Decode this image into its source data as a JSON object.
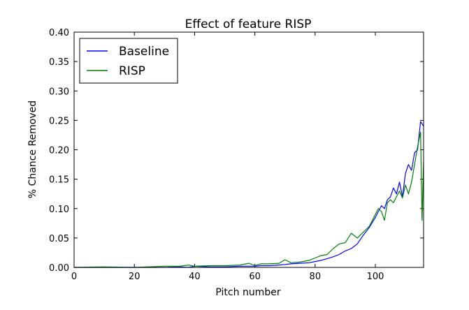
{
  "chart_data": {
    "type": "line",
    "title": "Effect of feature RISP",
    "xlabel": "Pitch number",
    "ylabel": "% Chance Removed",
    "xlim": [
      0,
      116
    ],
    "ylim": [
      0,
      0.4
    ],
    "xticks": [
      0,
      20,
      40,
      60,
      80,
      100
    ],
    "xtick_labels": [
      "0",
      "20",
      "40",
      "60",
      "80",
      "100"
    ],
    "yticks": [
      0,
      0.05,
      0.1,
      0.15,
      0.2,
      0.25,
      0.3,
      0.35,
      0.4
    ],
    "ytick_labels": [
      "0.00",
      "0.05",
      "0.10",
      "0.15",
      "0.20",
      "0.25",
      "0.30",
      "0.35",
      "0.40"
    ],
    "legend_position": "top-left",
    "grid": false,
    "series": [
      {
        "name": "Baseline",
        "color": "#0000ff",
        "x": [
          0,
          10,
          20,
          30,
          35,
          38,
          40,
          45,
          50,
          55,
          60,
          62,
          65,
          68,
          70,
          72,
          75,
          78,
          80,
          82,
          84,
          86,
          88,
          90,
          92,
          94,
          96,
          98,
          100,
          101,
          102,
          103,
          104,
          105,
          106,
          107,
          108,
          109,
          110,
          111,
          112,
          113,
          114,
          115,
          116
        ],
        "values": [
          0.0,
          0.0,
          0.0,
          0.0,
          0.001,
          0.0,
          0.002,
          0.001,
          0.001,
          0.002,
          0.002,
          0.003,
          0.003,
          0.004,
          0.005,
          0.006,
          0.007,
          0.008,
          0.01,
          0.012,
          0.015,
          0.018,
          0.022,
          0.028,
          0.032,
          0.04,
          0.055,
          0.068,
          0.085,
          0.095,
          0.105,
          0.1,
          0.115,
          0.12,
          0.135,
          0.125,
          0.145,
          0.12,
          0.16,
          0.175,
          0.165,
          0.195,
          0.2,
          0.248,
          0.24
        ]
      },
      {
        "name": "RISP",
        "color": "#008000",
        "x": [
          0,
          10,
          20,
          30,
          35,
          38,
          40,
          45,
          50,
          55,
          58,
          60,
          62,
          65,
          68,
          70,
          72,
          75,
          78,
          80,
          82,
          84,
          86,
          88,
          90,
          92,
          94,
          96,
          98,
          100,
          101,
          102,
          103,
          104,
          105,
          106,
          107,
          108,
          109,
          110,
          111,
          112,
          113,
          114,
          115,
          115.5,
          116
        ],
        "values": [
          0.0,
          0.001,
          0.0,
          0.002,
          0.002,
          0.004,
          0.002,
          0.003,
          0.003,
          0.004,
          0.007,
          0.003,
          0.006,
          0.006,
          0.007,
          0.013,
          0.008,
          0.009,
          0.012,
          0.016,
          0.02,
          0.022,
          0.032,
          0.04,
          0.042,
          0.058,
          0.05,
          0.06,
          0.07,
          0.09,
          0.1,
          0.095,
          0.08,
          0.11,
          0.115,
          0.11,
          0.12,
          0.13,
          0.118,
          0.14,
          0.125,
          0.145,
          0.175,
          0.205,
          0.23,
          0.08,
          0.18
        ]
      }
    ]
  }
}
